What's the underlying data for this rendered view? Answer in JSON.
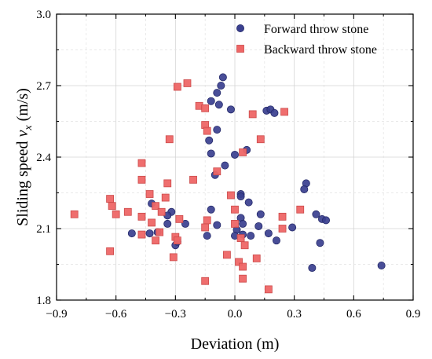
{
  "chart_data": {
    "type": "scatter",
    "xlabel": "Deviation (m)",
    "ylabel_prefix": "Sliding speed ",
    "ylabel_var": "v",
    "ylabel_sub": "x",
    "ylabel_suffix": " (m/s)",
    "xlim": [
      -0.9,
      0.9
    ],
    "ylim": [
      1.8,
      3.0
    ],
    "x_ticks": [
      -0.9,
      -0.6,
      -0.3,
      0.0,
      0.3,
      0.6,
      0.9
    ],
    "x_tick_labels": [
      "−0.9",
      "−0.6",
      "−0.3",
      "0.0",
      "0.3",
      "0.6",
      "0.9"
    ],
    "y_ticks": [
      1.8,
      2.1,
      2.4,
      2.7,
      3.0
    ],
    "y_tick_labels": [
      "1.8",
      "2.1",
      "2.4",
      "2.7",
      "3.0"
    ],
    "grid": true,
    "legend_position": "top-right",
    "series": [
      {
        "name": "Forward throw stone",
        "marker": "circle",
        "color": "#3a3f8f",
        "points": [
          [
            -0.06,
            2.735
          ],
          [
            -0.07,
            2.7
          ],
          [
            -0.09,
            2.67
          ],
          [
            -0.12,
            2.635
          ],
          [
            -0.08,
            2.62
          ],
          [
            -0.02,
            2.6
          ],
          [
            0.16,
            2.595
          ],
          [
            0.18,
            2.6
          ],
          [
            0.2,
            2.585
          ],
          [
            -0.09,
            2.515
          ],
          [
            -0.13,
            2.47
          ],
          [
            0.06,
            2.43
          ],
          [
            -0.12,
            2.415
          ],
          [
            0.0,
            2.41
          ],
          [
            -0.05,
            2.365
          ],
          [
            -0.1,
            2.325
          ],
          [
            0.36,
            2.29
          ],
          [
            0.35,
            2.265
          ],
          [
            0.03,
            2.245
          ],
          [
            0.03,
            2.235
          ],
          [
            -0.42,
            2.205
          ],
          [
            0.07,
            2.21
          ],
          [
            -0.32,
            2.17
          ],
          [
            -0.34,
            2.155
          ],
          [
            -0.12,
            2.18
          ],
          [
            0.13,
            2.16
          ],
          [
            0.41,
            2.16
          ],
          [
            0.03,
            2.145
          ],
          [
            0.44,
            2.14
          ],
          [
            0.46,
            2.135
          ],
          [
            0.04,
            2.12
          ],
          [
            -0.09,
            2.115
          ],
          [
            -0.34,
            2.12
          ],
          [
            -0.25,
            2.12
          ],
          [
            0.12,
            2.11
          ],
          [
            0.29,
            2.105
          ],
          [
            0.01,
            2.095
          ],
          [
            -0.52,
            2.08
          ],
          [
            -0.43,
            2.08
          ],
          [
            -0.39,
            2.085
          ],
          [
            -0.14,
            2.07
          ],
          [
            0.0,
            2.07
          ],
          [
            0.04,
            2.075
          ],
          [
            0.08,
            2.07
          ],
          [
            0.17,
            2.08
          ],
          [
            0.21,
            2.05
          ],
          [
            -0.3,
            2.03
          ],
          [
            -0.29,
            2.045
          ],
          [
            0.43,
            2.04
          ],
          [
            0.39,
            1.935
          ],
          [
            0.74,
            1.945
          ]
        ]
      },
      {
        "name": "Backward throw stone",
        "marker": "square",
        "color": "#ee6666",
        "points": [
          [
            -0.24,
            2.71
          ],
          [
            -0.29,
            2.695
          ],
          [
            -0.18,
            2.615
          ],
          [
            -0.15,
            2.605
          ],
          [
            0.09,
            2.58
          ],
          [
            0.25,
            2.59
          ],
          [
            -0.15,
            2.535
          ],
          [
            -0.14,
            2.51
          ],
          [
            -0.33,
            2.475
          ],
          [
            0.13,
            2.475
          ],
          [
            0.04,
            2.42
          ],
          [
            -0.47,
            2.375
          ],
          [
            -0.09,
            2.34
          ],
          [
            -0.47,
            2.305
          ],
          [
            -0.21,
            2.305
          ],
          [
            -0.34,
            2.29
          ],
          [
            -0.43,
            2.245
          ],
          [
            -0.02,
            2.24
          ],
          [
            -0.35,
            2.23
          ],
          [
            -0.63,
            2.225
          ],
          [
            -0.62,
            2.195
          ],
          [
            -0.4,
            2.195
          ],
          [
            -0.37,
            2.17
          ],
          [
            -0.54,
            2.17
          ],
          [
            0.0,
            2.18
          ],
          [
            -0.6,
            2.16
          ],
          [
            -0.81,
            2.16
          ],
          [
            0.24,
            2.15
          ],
          [
            -0.47,
            2.15
          ],
          [
            -0.28,
            2.14
          ],
          [
            -0.14,
            2.135
          ],
          [
            -0.42,
            2.125
          ],
          [
            0.0,
            2.12
          ],
          [
            0.33,
            2.18
          ],
          [
            -0.15,
            2.105
          ],
          [
            0.24,
            2.1
          ],
          [
            -0.38,
            2.085
          ],
          [
            -0.47,
            2.075
          ],
          [
            -0.3,
            2.065
          ],
          [
            0.03,
            2.06
          ],
          [
            -0.4,
            2.05
          ],
          [
            -0.29,
            2.05
          ],
          [
            0.05,
            2.03
          ],
          [
            -0.63,
            2.005
          ],
          [
            -0.04,
            1.99
          ],
          [
            0.11,
            1.975
          ],
          [
            -0.31,
            1.98
          ],
          [
            0.02,
            1.96
          ],
          [
            0.04,
            1.94
          ],
          [
            0.04,
            1.89
          ],
          [
            -0.15,
            1.88
          ],
          [
            0.17,
            1.845
          ]
        ]
      }
    ]
  }
}
